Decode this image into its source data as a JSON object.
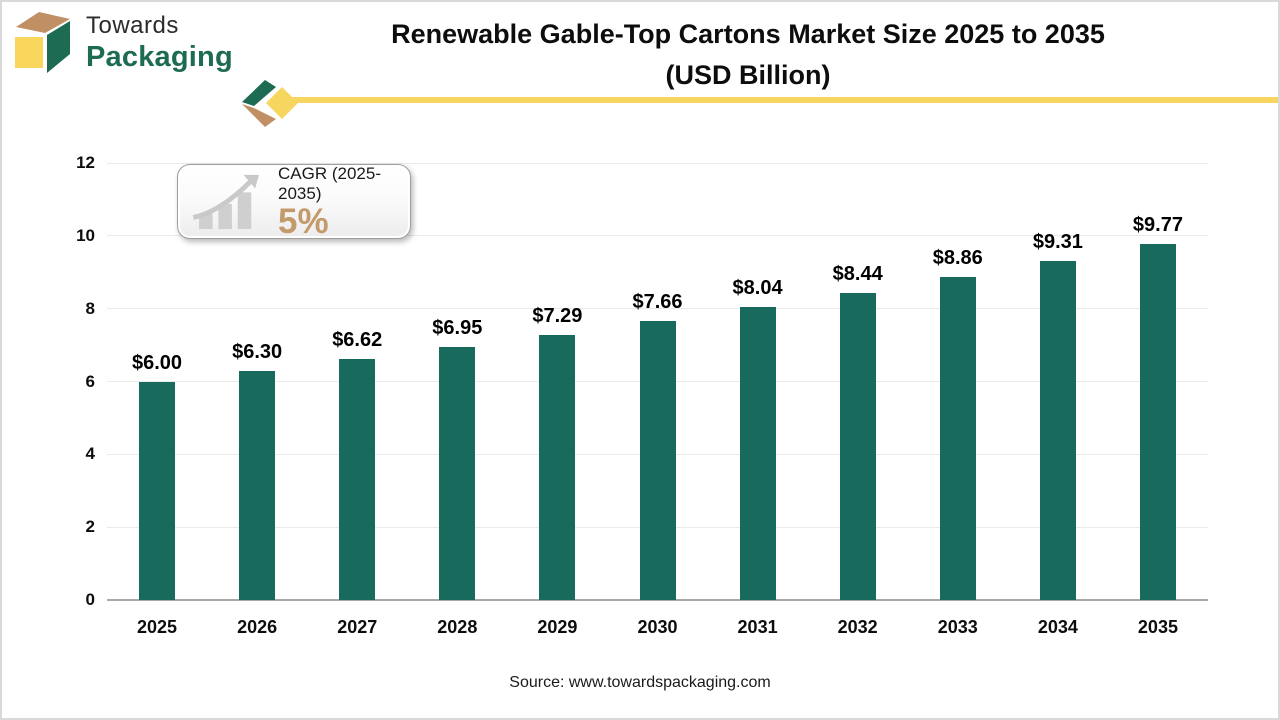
{
  "brand": {
    "name_line1": "Towards",
    "name_line2": "Packaging",
    "logo_icon": "packaging-box-cube-icon",
    "colors": {
      "green": "#1d6b53",
      "yellow": "#f8d75c",
      "tan": "#c09064"
    }
  },
  "header": {
    "title_line1": "Renewable Gable-Top Cartons Market Size 2025 to 2035",
    "title_line2": "(USD Billion)",
    "accent_color": "#f6d65f"
  },
  "cagr_badge": {
    "label": "CAGR (2025-2035)",
    "value": "5%",
    "icon": "growth-bars-arrow-icon",
    "value_color": "#c39a6b"
  },
  "chart_data": {
    "type": "bar",
    "title": "Renewable Gable-Top Cartons Market Size 2025 to 2035 (USD Billion)",
    "categories": [
      "2025",
      "2026",
      "2027",
      "2028",
      "2029",
      "2030",
      "2031",
      "2032",
      "2033",
      "2034",
      "2035"
    ],
    "values": [
      6.0,
      6.3,
      6.62,
      6.95,
      7.29,
      7.66,
      8.04,
      8.44,
      8.86,
      9.31,
      9.77
    ],
    "value_labels": [
      "$6.00",
      "$6.30",
      "$6.62",
      "$6.95",
      "$7.29",
      "$7.66",
      "$8.04",
      "$8.44",
      "$8.86",
      "$9.31",
      "$9.77"
    ],
    "xlabel": "",
    "ylabel": "",
    "ylim": [
      0,
      12
    ],
    "yticks": [
      0,
      2,
      4,
      6,
      8,
      10,
      12
    ],
    "grid": true,
    "legend": false,
    "bar_color": "#186a5c"
  },
  "footer": {
    "source": "Source: www.towardspackaging.com"
  }
}
